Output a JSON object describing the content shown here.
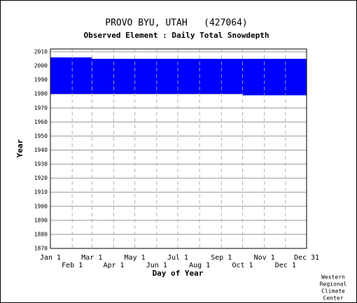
{
  "chart_data": {
    "type": "range",
    "title": "PROVO BYU, UTAH   (427064)",
    "subtitle": "Observed Element : Daily Total Snowdepth",
    "xlabel": "Day of Year",
    "ylabel": "Year",
    "annotation": [
      "Western",
      "Regional",
      "Climate",
      "Center"
    ],
    "color": "#0000ff",
    "bands": [
      {
        "x": [
          1,
          60
        ],
        "y": [
          1980,
          2006
        ]
      },
      {
        "x": [
          60,
          274
        ],
        "y": [
          1980,
          2005
        ]
      },
      {
        "x": [
          274,
          365
        ],
        "y": [
          1979,
          2005
        ]
      }
    ],
    "xlim": [
      1,
      365
    ],
    "xticks": [
      {
        "value": 1,
        "label": "Jan 1"
      },
      {
        "value": 32,
        "label": "Feb 1"
      },
      {
        "value": 60,
        "label": "Mar 1"
      },
      {
        "value": 91,
        "label": "Apr 1"
      },
      {
        "value": 121,
        "label": "May 1"
      },
      {
        "value": 152,
        "label": "Jun 1"
      },
      {
        "value": 182,
        "label": "Jul 1"
      },
      {
        "value": 213,
        "label": "Aug 1"
      },
      {
        "value": 244,
        "label": "Sep 1"
      },
      {
        "value": 274,
        "label": "Oct 1"
      },
      {
        "value": 305,
        "label": "Nov 1"
      },
      {
        "value": 335,
        "label": "Dec 1"
      },
      {
        "value": 365,
        "label": "Dec 31"
      }
    ],
    "ylim": [
      1870,
      2012
    ],
    "yticks": [
      1870,
      1880,
      1890,
      1900,
      1910,
      1920,
      1930,
      1940,
      1950,
      1960,
      1970,
      1980,
      1990,
      2000,
      2010
    ],
    "grid": true
  }
}
